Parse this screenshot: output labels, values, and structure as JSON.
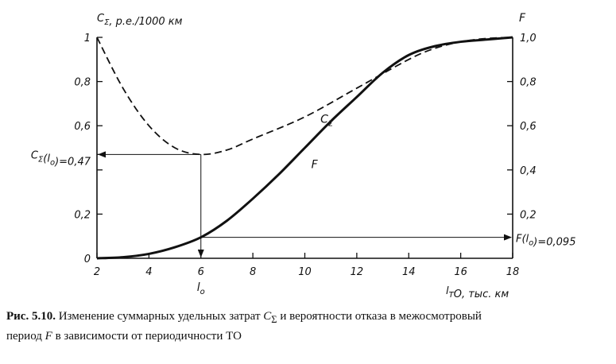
{
  "chart_data": {
    "type": "line",
    "x": [
      2,
      4,
      6,
      8,
      10,
      12,
      14,
      16,
      18
    ],
    "xlim": [
      2,
      18
    ],
    "ylim_left": [
      0,
      1
    ],
    "ylim_right": [
      0,
      1
    ],
    "x_ticks": [
      "2",
      "4",
      "6",
      "8",
      "10",
      "12",
      "14",
      "16",
      "18"
    ],
    "y_ticks_left": [
      "0",
      "0,2",
      "0,47",
      "0,6",
      "0,8",
      "1"
    ],
    "y_ticks_right": [
      "0,2",
      "0,4",
      "0,6",
      "0,8",
      "1,0"
    ],
    "xlabel": "l_ТО, тыс. км",
    "ylabel_left": "C_Σ, р.е./1000 км",
    "ylabel_right": "F",
    "series": [
      {
        "name": "C_Σ",
        "style": "dashed",
        "points": [
          [
            2,
            1.0
          ],
          [
            3,
            0.77
          ],
          [
            4,
            0.6
          ],
          [
            5,
            0.5
          ],
          [
            6,
            0.47
          ],
          [
            7,
            0.49
          ],
          [
            8,
            0.54
          ],
          [
            10,
            0.64
          ],
          [
            12,
            0.77
          ],
          [
            14,
            0.9
          ],
          [
            15,
            0.95
          ],
          [
            16,
            0.98
          ],
          [
            17,
            0.995
          ],
          [
            18,
            1.0
          ]
        ]
      },
      {
        "name": "F",
        "style": "solid",
        "points": [
          [
            2,
            0.0
          ],
          [
            3,
            0.005
          ],
          [
            4,
            0.02
          ],
          [
            5,
            0.05
          ],
          [
            6,
            0.095
          ],
          [
            7,
            0.17
          ],
          [
            8,
            0.27
          ],
          [
            9,
            0.38
          ],
          [
            10,
            0.5
          ],
          [
            11,
            0.62
          ],
          [
            12,
            0.73
          ],
          [
            13,
            0.84
          ],
          [
            14,
            0.92
          ],
          [
            15,
            0.96
          ],
          [
            16,
            0.98
          ],
          [
            17,
            0.99
          ],
          [
            18,
            1.0
          ]
        ]
      }
    ],
    "annotations": {
      "optimum_x": 6,
      "optimum_x_label": "l_о",
      "c_at_opt_label": "C_Σ(l_о)=0,47",
      "c_at_opt": 0.47,
      "f_at_opt_label": "F(l_о)=0,095",
      "f_at_opt": 0.095
    }
  },
  "caption": {
    "figure": "Рис. 5.10.",
    "text_1": " Изменение суммарных удельных затрат ",
    "symbol": "C",
    "symbol_sub": "Σ",
    "text_2": " и вероятности отказа в межосмотровый",
    "line2_a": "период ",
    "line2_f": "F",
    "line2_b": " в зависимости от периодичности ТО"
  }
}
